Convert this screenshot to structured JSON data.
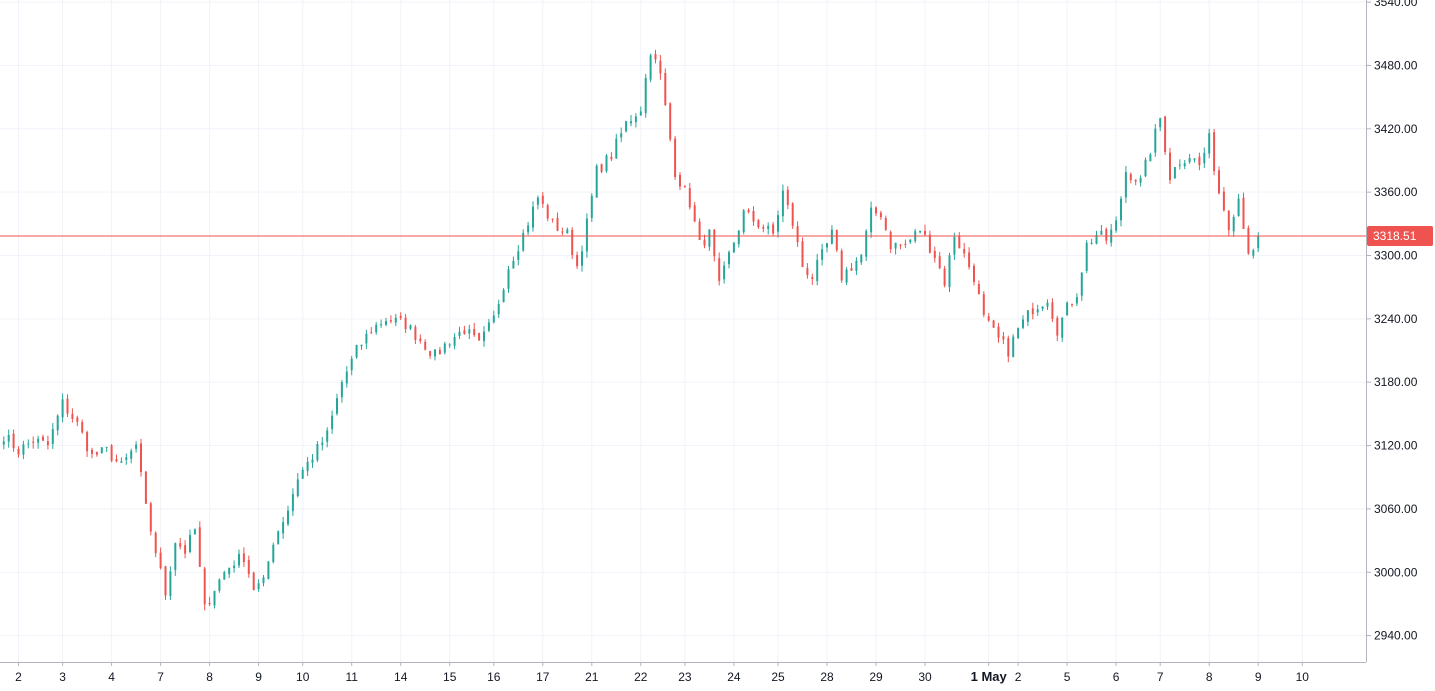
{
  "chart_data": {
    "type": "candlestick",
    "ylim": [
      2915,
      3542
    ],
    "y_ticks": [
      "2940.00",
      "3000.00",
      "3060.00",
      "3120.00",
      "3180.00",
      "3240.00",
      "3300.00",
      "3360.00",
      "3420.00",
      "3480.00",
      "3540.00"
    ],
    "x_ticks": [
      {
        "label": "2",
        "i": 3
      },
      {
        "label": "3",
        "i": 12
      },
      {
        "label": "4",
        "i": 22
      },
      {
        "label": "7",
        "i": 32
      },
      {
        "label": "8",
        "i": 42
      },
      {
        "label": "9",
        "i": 52
      },
      {
        "label": "10",
        "i": 61
      },
      {
        "label": "11",
        "i": 71
      },
      {
        "label": "14",
        "i": 81
      },
      {
        "label": "15",
        "i": 91
      },
      {
        "label": "16",
        "i": 100
      },
      {
        "label": "17",
        "i": 110
      },
      {
        "label": "21",
        "i": 120
      },
      {
        "label": "22",
        "i": 130
      },
      {
        "label": "23",
        "i": 139
      },
      {
        "label": "24",
        "i": 149
      },
      {
        "label": "25",
        "i": 158
      },
      {
        "label": "28",
        "i": 168
      },
      {
        "label": "29",
        "i": 178
      },
      {
        "label": "30",
        "i": 188
      },
      {
        "label": "1 May",
        "i": 201,
        "bold": true
      },
      {
        "label": "2",
        "i": 207
      },
      {
        "label": "5",
        "i": 217
      },
      {
        "label": "6",
        "i": 227
      },
      {
        "label": "7",
        "i": 236
      },
      {
        "label": "8",
        "i": 246
      },
      {
        "label": "9",
        "i": 256
      },
      {
        "label": "10",
        "i": 265
      }
    ],
    "keyframes": [
      [
        0,
        3130
      ],
      [
        3,
        3115
      ],
      [
        6,
        3125
      ],
      [
        9,
        3120
      ],
      [
        12,
        3160
      ],
      [
        15,
        3140
      ],
      [
        18,
        3110
      ],
      [
        21,
        3115
      ],
      [
        24,
        3100
      ],
      [
        27,
        3120
      ],
      [
        29,
        3060
      ],
      [
        31,
        3020
      ],
      [
        33,
        2980
      ],
      [
        35,
        3030
      ],
      [
        37,
        3020
      ],
      [
        39,
        3040
      ],
      [
        41,
        2965
      ],
      [
        43,
        2985
      ],
      [
        45,
        3000
      ],
      [
        47,
        3010
      ],
      [
        49,
        3015
      ],
      [
        51,
        2985
      ],
      [
        53,
        2990
      ],
      [
        55,
        3030
      ],
      [
        58,
        3060
      ],
      [
        60,
        3090
      ],
      [
        63,
        3110
      ],
      [
        66,
        3130
      ],
      [
        69,
        3180
      ],
      [
        72,
        3210
      ],
      [
        75,
        3230
      ],
      [
        78,
        3240
      ],
      [
        82,
        3235
      ],
      [
        85,
        3220
      ],
      [
        88,
        3205
      ],
      [
        91,
        3220
      ],
      [
        94,
        3230
      ],
      [
        97,
        3215
      ],
      [
        100,
        3240
      ],
      [
        103,
        3290
      ],
      [
        106,
        3320
      ],
      [
        109,
        3355
      ],
      [
        112,
        3330
      ],
      [
        115,
        3320
      ],
      [
        117,
        3290
      ],
      [
        119,
        3330
      ],
      [
        121,
        3380
      ],
      [
        124,
        3395
      ],
      [
        127,
        3425
      ],
      [
        130,
        3440
      ],
      [
        132,
        3495
      ],
      [
        134,
        3470
      ],
      [
        137,
        3380
      ],
      [
        140,
        3350
      ],
      [
        142,
        3310
      ],
      [
        144,
        3320
      ],
      [
        146,
        3270
      ],
      [
        148,
        3300
      ],
      [
        151,
        3340
      ],
      [
        154,
        3330
      ],
      [
        157,
        3320
      ],
      [
        159,
        3360
      ],
      [
        161,
        3330
      ],
      [
        163,
        3290
      ],
      [
        165,
        3280
      ],
      [
        167,
        3300
      ],
      [
        169,
        3320
      ],
      [
        171,
        3280
      ],
      [
        173,
        3290
      ],
      [
        175,
        3300
      ],
      [
        177,
        3340
      ],
      [
        179,
        3340
      ],
      [
        181,
        3310
      ],
      [
        184,
        3310
      ],
      [
        187,
        3325
      ],
      [
        190,
        3300
      ],
      [
        192,
        3275
      ],
      [
        194,
        3320
      ],
      [
        196,
        3300
      ],
      [
        198,
        3280
      ],
      [
        200,
        3240
      ],
      [
        203,
        3220
      ],
      [
        205,
        3210
      ],
      [
        207,
        3230
      ],
      [
        210,
        3250
      ],
      [
        213,
        3260
      ],
      [
        215,
        3230
      ],
      [
        217,
        3250
      ],
      [
        219,
        3265
      ],
      [
        221,
        3310
      ],
      [
        223,
        3320
      ],
      [
        225,
        3315
      ],
      [
        227,
        3330
      ],
      [
        229,
        3380
      ],
      [
        232,
        3370
      ],
      [
        234,
        3400
      ],
      [
        236,
        3430
      ],
      [
        238,
        3375
      ],
      [
        240,
        3390
      ],
      [
        242,
        3395
      ],
      [
        244,
        3385
      ],
      [
        246,
        3410
      ],
      [
        248,
        3360
      ],
      [
        250,
        3330
      ],
      [
        252,
        3355
      ],
      [
        254,
        3305
      ],
      [
        255,
        3300
      ],
      [
        256,
        3318.51
      ]
    ],
    "last_price": "3318.51",
    "colors": {
      "up": "#26a69a",
      "down": "#ef5350",
      "price_line": "#ef5350",
      "price_tag_bg": "#ef5350",
      "grid": "#f0f3fa",
      "axis": "#b2b5be"
    }
  }
}
